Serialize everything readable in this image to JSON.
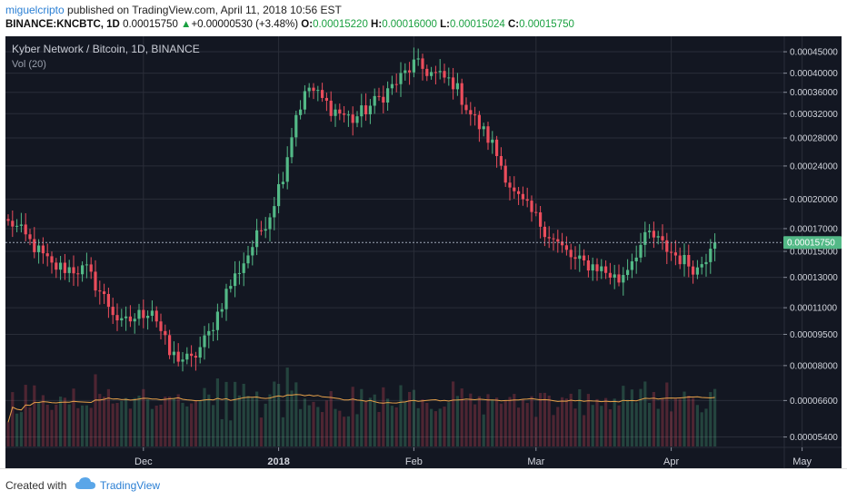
{
  "header": {
    "author": "miguelcripto",
    "published_text": "published on TradingView.com, April 11, 2018 10:56 EST",
    "symbol": "BINANCE:KNCBTC, 1D",
    "last_price": "0.00015750",
    "change_arrow": "▲",
    "change": "+0.00000530 (+3.48%)",
    "o_label": "O:",
    "open": "0.00015220",
    "h_label": "H:",
    "high": "0.00016000",
    "l_label": "L:",
    "low": "0.00015024",
    "c_label": "C:",
    "close": "0.00015750"
  },
  "chart": {
    "title": "Kyber Network / Bitcoin, 1D, BINANCE",
    "volume_label": "Vol (20)",
    "price_tag": "0.00015750"
  },
  "footer": {
    "created_with": "Created with",
    "brand": "TradingView"
  },
  "colors": {
    "up": "#53b987",
    "down": "#eb4d5c",
    "background": "#131722",
    "grid": "#2a2e39",
    "volume_ma": "#e8a24a",
    "price_line": "#a0a8b8",
    "tag": "#53b987"
  },
  "chart_data": {
    "type": "candlestick",
    "title": "Kyber Network / Bitcoin, 1D, BINANCE",
    "x_ticks": [
      "Dec",
      "2018",
      "Feb",
      "Mar",
      "Apr",
      "May"
    ],
    "y_ticks": [
      "0.00045000",
      "0.00040000",
      "0.00036000",
      "0.00032000",
      "0.00028000",
      "0.00024000",
      "0.00020000",
      "0.00017000",
      "0.00015000",
      "0.00013000",
      "0.00011000",
      "0.00009500",
      "0.00008000",
      "0.00006600",
      "0.00005400"
    ],
    "y_scale": "log",
    "ylim": [
      5.1e-05,
      0.00049
    ],
    "last_price": 0.0001575,
    "close_path": [
      {
        "date": "2017-11-01",
        "close": 0.000175
      },
      {
        "date": "2017-11-05",
        "close": 0.000158
      },
      {
        "date": "2017-11-10",
        "close": 0.000138
      },
      {
        "date": "2017-11-18",
        "close": 0.000135
      },
      {
        "date": "2017-11-26",
        "close": 0.0001
      },
      {
        "date": "2017-12-03",
        "close": 0.00011
      },
      {
        "date": "2017-12-07",
        "close": 8.5e-05
      },
      {
        "date": "2017-12-12",
        "close": 8.2e-05
      },
      {
        "date": "2017-12-16",
        "close": 9.5e-05
      },
      {
        "date": "2017-12-20",
        "close": 0.00012
      },
      {
        "date": "2017-12-25",
        "close": 0.000148
      },
      {
        "date": "2017-12-30",
        "close": 0.000185
      },
      {
        "date": "2018-01-02",
        "close": 0.00023
      },
      {
        "date": "2018-01-05",
        "close": 0.00032
      },
      {
        "date": "2018-01-08",
        "close": 0.00037
      },
      {
        "date": "2018-01-13",
        "close": 0.00033
      },
      {
        "date": "2018-01-18",
        "close": 0.00031
      },
      {
        "date": "2018-01-23",
        "close": 0.00034
      },
      {
        "date": "2018-01-28",
        "close": 0.00038
      },
      {
        "date": "2018-02-01",
        "close": 0.00042
      },
      {
        "date": "2018-02-05",
        "close": 0.0004
      },
      {
        "date": "2018-02-10",
        "close": 0.00038
      },
      {
        "date": "2018-02-14",
        "close": 0.00032
      },
      {
        "date": "2018-02-19",
        "close": 0.00027
      },
      {
        "date": "2018-02-24",
        "close": 0.000205
      },
      {
        "date": "2018-03-01",
        "close": 0.00018
      },
      {
        "date": "2018-03-05",
        "close": 0.00016
      },
      {
        "date": "2018-03-10",
        "close": 0.000142
      },
      {
        "date": "2018-03-15",
        "close": 0.000138
      },
      {
        "date": "2018-03-20",
        "close": 0.000128
      },
      {
        "date": "2018-03-24",
        "close": 0.00015
      },
      {
        "date": "2018-03-27",
        "close": 0.000165
      },
      {
        "date": "2018-03-31",
        "close": 0.000152
      },
      {
        "date": "2018-04-04",
        "close": 0.000142
      },
      {
        "date": "2018-04-07",
        "close": 0.000136
      },
      {
        "date": "2018-04-10",
        "close": 0.0001522
      },
      {
        "date": "2018-04-11",
        "close": 0.0001575
      }
    ]
  }
}
